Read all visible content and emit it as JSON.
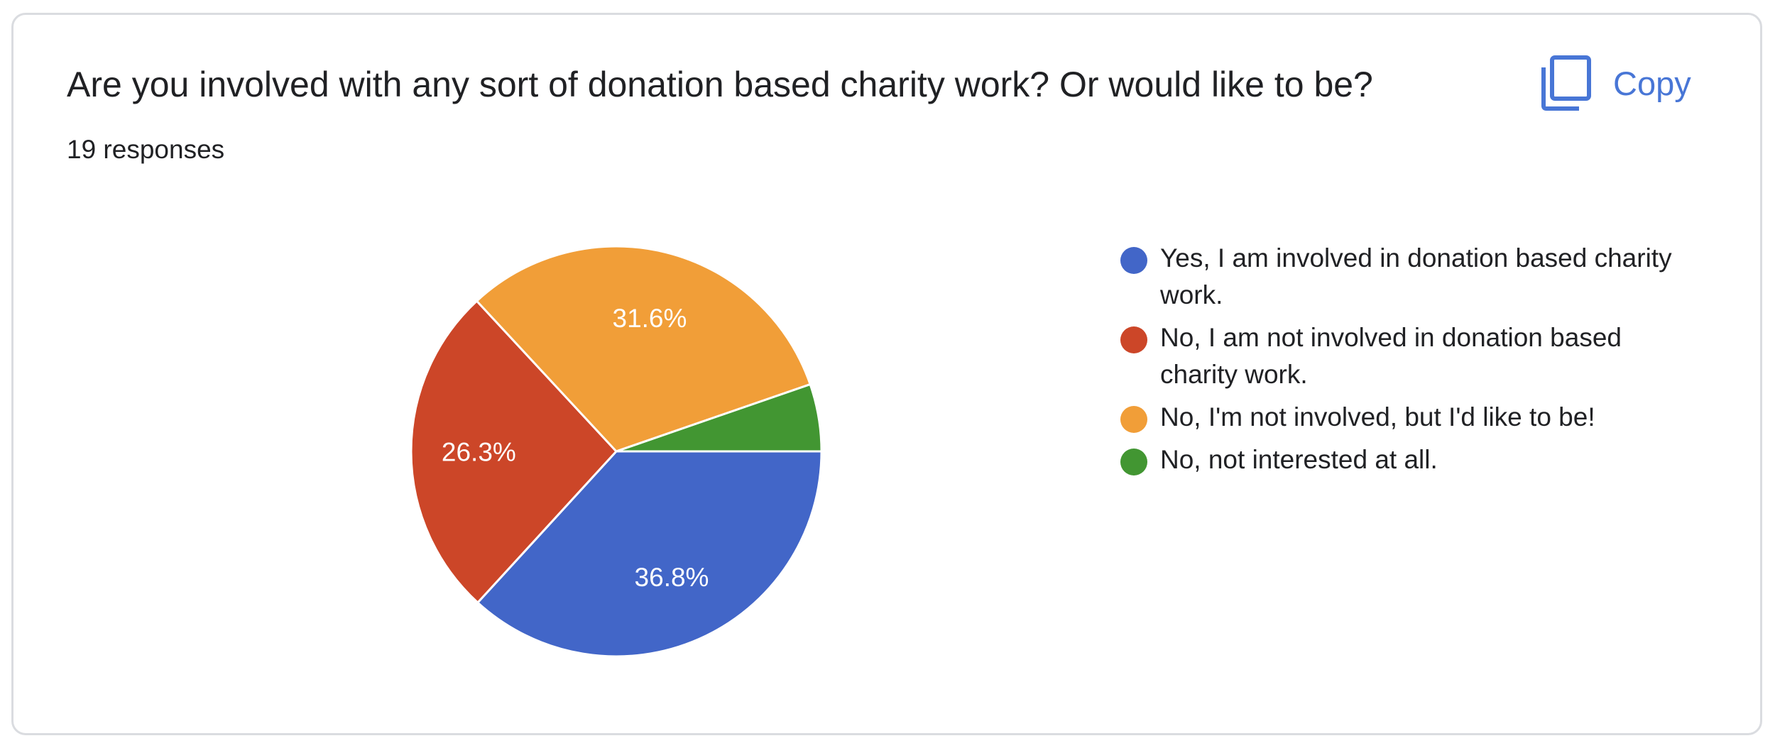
{
  "card": {
    "title": "Are you involved with any sort of donation based charity work? Or would like to be?",
    "responses": "19 responses",
    "copy_label": "Copy",
    "copy_icon": "copy-icon"
  },
  "chart_data": {
    "type": "pie",
    "title": "Are you involved with any sort of donation based charity work? Or would like to be?",
    "legend_position": "right",
    "slices": [
      {
        "label": "Yes, I am involved in donation based charity work.",
        "value": 36.8,
        "display": "36.8%",
        "color": "#4266c8"
      },
      {
        "label": "No, I am not involved in donation based charity work.",
        "value": 26.3,
        "display": "26.3%",
        "color": "#cc4628"
      },
      {
        "label": "No, I'm not involved, but I'd like to be!",
        "value": 31.6,
        "display": "31.6%",
        "color": "#f19e38"
      },
      {
        "label": "No, not interested at all.",
        "value": 5.3,
        "display": "",
        "color": "#429632"
      }
    ]
  }
}
